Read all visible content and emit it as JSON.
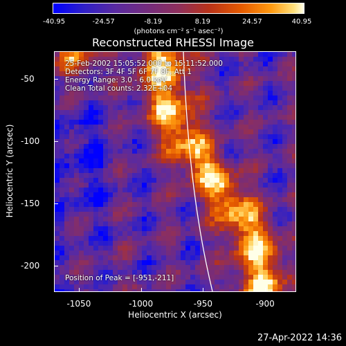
{
  "chart_data": {
    "type": "heatmap",
    "title": "Reconstructed RHESSI Image",
    "xlabel": "Heliocentric X (arcsec)",
    "ylabel": "Heliocentric Y (arcsec)",
    "xlim": [
      -1070,
      -875
    ],
    "ylim": [
      -221,
      -28
    ],
    "x_ticks": [
      "-1050",
      "-1000",
      "-950",
      "-900"
    ],
    "y_ticks": [
      "-50",
      "-100",
      "-150",
      "-200"
    ],
    "colorbar": {
      "ticks": [
        "-40.95",
        "-24.57",
        "-8.19",
        "8.19",
        "24.57",
        "40.95"
      ],
      "range": [
        -40.95,
        40.95
      ],
      "units": "(photons cm⁻² s⁻¹ asec⁻²)"
    },
    "annotations": {
      "time": "25-Feb-2002 15:05:52.000 to 15:11:52.000",
      "detectors": "Detectors: 3F 4F 5F 6F 7F 8F, Att 1",
      "energy": "Energy Range: 3.0 - 6.0 keV",
      "method": "Clean    Total counts: 2.32E+04",
      "peak": "Position of Peak = [-951,-211]"
    },
    "peak_position": [
      -951,
      -211
    ]
  },
  "footer": {
    "timestamp": "27-Apr-2022 14:36"
  },
  "colors": {
    "background": "#000000",
    "low": "#0000ff",
    "mid": "#8e2f5c",
    "high": "#ffffe8"
  }
}
